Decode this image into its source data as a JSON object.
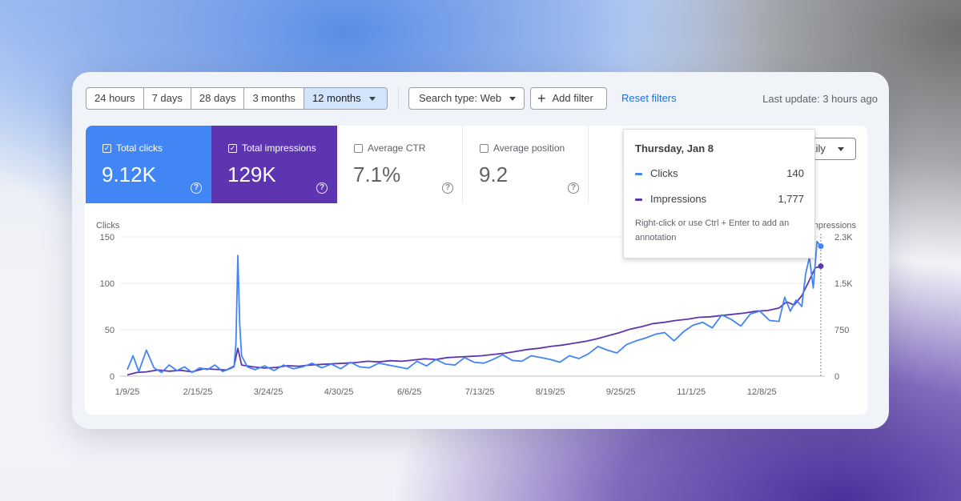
{
  "toolbar": {
    "ranges": [
      "24 hours",
      "7 days",
      "28 days",
      "3 months",
      "12 months"
    ],
    "active_range": "12 months",
    "search_type": "Search type: Web",
    "add_filter": "Add filter",
    "reset_filters": "Reset filters",
    "last_update": "Last update: 3 hours ago"
  },
  "metrics": [
    {
      "label": "Total clicks",
      "value": "9.12K",
      "checked": true
    },
    {
      "label": "Total impressions",
      "value": "129K",
      "checked": true
    },
    {
      "label": "Average CTR",
      "value": "7.1%",
      "checked": false
    },
    {
      "label": "Average position",
      "value": "9.2",
      "checked": false
    }
  ],
  "granularity": "Daily",
  "tooltip": {
    "date": "Thursday, Jan 8",
    "clicks_label": "Clicks",
    "clicks_value": "140",
    "impressions_label": "Impressions",
    "impressions_value": "1,777",
    "note": "Right-click or use Ctrl + Enter to add an annotation"
  },
  "colors": {
    "clicks": "#4285f4",
    "impressions": "#5e35b1",
    "reset_link": "#1a73e8",
    "active_range_bg": "#d2e3fc"
  },
  "chart_data": {
    "type": "line",
    "title": "",
    "left_axis_label": "Clicks",
    "right_axis_label": "Impressions",
    "left_ticks": [
      0,
      50,
      100,
      150
    ],
    "left_tick_labels": [
      "0",
      "50",
      "100",
      "150"
    ],
    "right_ticks": [
      0,
      750,
      1500,
      2250
    ],
    "right_tick_labels": [
      "0",
      "750",
      "1.5K",
      "2.3K"
    ],
    "ylim_left": [
      0,
      150
    ],
    "ylim_right": [
      0,
      2250
    ],
    "x_ticks": [
      "1/9/25",
      "2/15/25",
      "3/24/25",
      "4/30/25",
      "6/6/25",
      "7/13/25",
      "8/19/25",
      "9/25/25",
      "11/1/25",
      "12/8/25"
    ],
    "x_tick_day_index": [
      0,
      37,
      74,
      111,
      148,
      185,
      222,
      259,
      296,
      333
    ],
    "total_days": 365,
    "series": [
      {
        "name": "Clicks",
        "axis": "left",
        "days": [
          0,
          3,
          6,
          10,
          14,
          18,
          22,
          26,
          30,
          34,
          38,
          42,
          46,
          50,
          54,
          56,
          57,
          58,
          59,
          60,
          63,
          67,
          72,
          77,
          82,
          87,
          92,
          97,
          102,
          107,
          112,
          117,
          122,
          127,
          132,
          137,
          142,
          147,
          152,
          157,
          162,
          167,
          172,
          177,
          182,
          187,
          192,
          197,
          202,
          207,
          212,
          217,
          222,
          227,
          232,
          237,
          242,
          247,
          252,
          257,
          262,
          267,
          272,
          277,
          282,
          287,
          292,
          297,
          302,
          307,
          312,
          317,
          322,
          327,
          332,
          337,
          342,
          345,
          348,
          351,
          354,
          356,
          358,
          360,
          362,
          364
        ],
        "values": [
          7,
          22,
          5,
          28,
          9,
          4,
          12,
          6,
          10,
          4,
          9,
          7,
          12,
          5,
          8,
          10,
          35,
          130,
          55,
          22,
          10,
          7,
          11,
          6,
          12,
          8,
          10,
          14,
          9,
          13,
          8,
          15,
          10,
          9,
          14,
          12,
          10,
          8,
          16,
          11,
          18,
          13,
          12,
          20,
          15,
          14,
          18,
          23,
          17,
          16,
          22,
          20,
          18,
          15,
          22,
          19,
          24,
          32,
          28,
          25,
          34,
          38,
          41,
          45,
          47,
          38,
          48,
          55,
          58,
          52,
          66,
          61,
          54,
          67,
          70,
          60,
          59,
          85,
          70,
          82,
          75,
          110,
          128,
          95,
          145,
          140
        ]
      },
      {
        "name": "Impressions",
        "axis": "right",
        "days": [
          0,
          5,
          10,
          16,
          22,
          28,
          34,
          40,
          46,
          52,
          56,
          58,
          60,
          66,
          72,
          78,
          84,
          90,
          96,
          102,
          108,
          114,
          120,
          126,
          132,
          138,
          144,
          150,
          156,
          162,
          168,
          174,
          180,
          186,
          192,
          198,
          204,
          210,
          216,
          222,
          228,
          234,
          240,
          246,
          252,
          258,
          264,
          270,
          276,
          282,
          288,
          294,
          300,
          306,
          312,
          318,
          324,
          330,
          336,
          342,
          346,
          350,
          354,
          358,
          361,
          364
        ],
        "values": [
          20,
          60,
          70,
          100,
          80,
          95,
          70,
          120,
          110,
          100,
          160,
          450,
          180,
          150,
          130,
          140,
          170,
          160,
          180,
          190,
          200,
          210,
          220,
          240,
          230,
          250,
          240,
          260,
          280,
          270,
          300,
          310,
          320,
          330,
          350,
          370,
          400,
          430,
          450,
          480,
          500,
          530,
          560,
          600,
          650,
          700,
          760,
          800,
          850,
          870,
          900,
          920,
          950,
          960,
          980,
          1000,
          1020,
          1050,
          1060,
          1100,
          1200,
          1150,
          1300,
          1550,
          1750,
          1777
        ]
      }
    ],
    "hover_day_index": 364
  }
}
